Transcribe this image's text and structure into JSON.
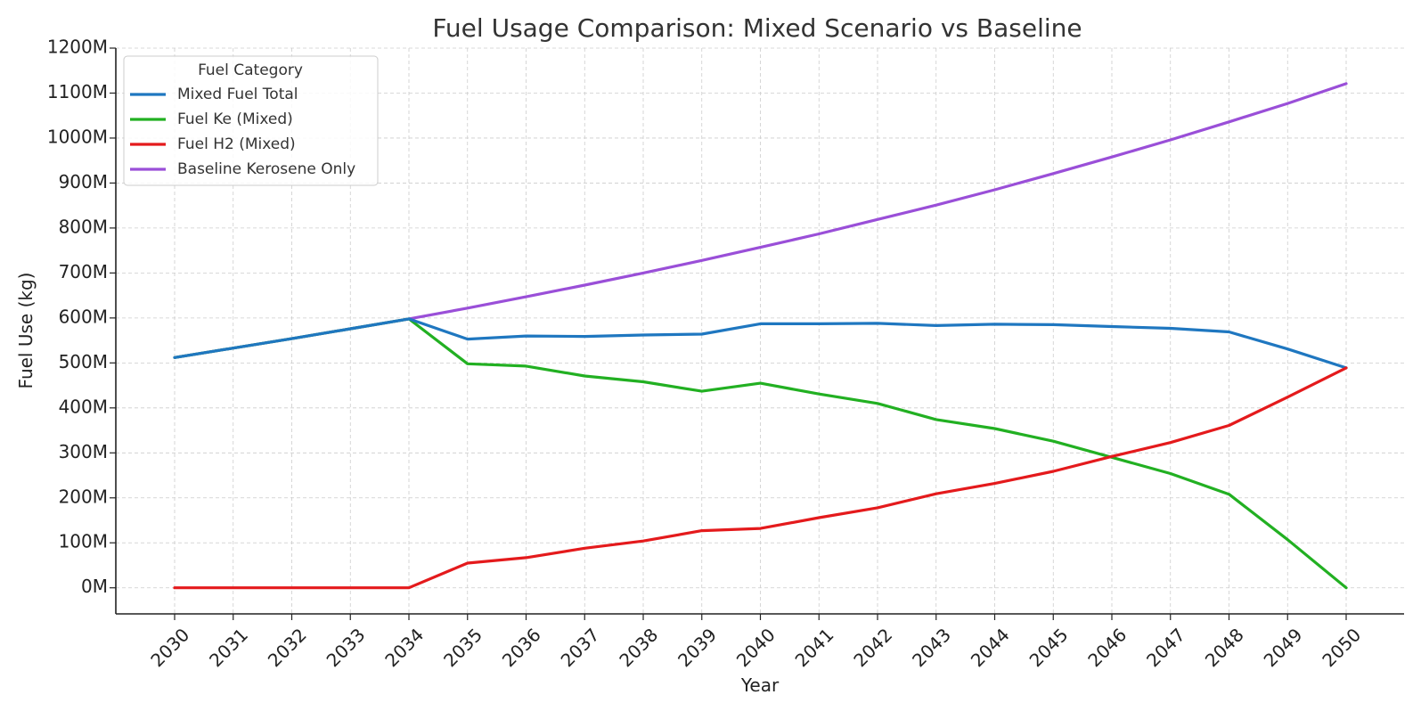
{
  "chart_data": {
    "type": "line",
    "title": "Fuel Usage Comparison: Mixed Scenario vs Baseline",
    "xlabel": "Year",
    "ylabel": "Fuel Use (kg)",
    "x": [
      2030,
      2031,
      2032,
      2033,
      2034,
      2035,
      2036,
      2037,
      2038,
      2039,
      2040,
      2041,
      2042,
      2043,
      2044,
      2045,
      2046,
      2047,
      2048,
      2049,
      2050
    ],
    "ylim": [
      -58,
      1200
    ],
    "yticks": [
      0,
      100,
      200,
      300,
      400,
      500,
      600,
      700,
      800,
      900,
      1000,
      1100,
      1200
    ],
    "ytick_labels": [
      "0M",
      "100M",
      "200M",
      "300M",
      "400M",
      "500M",
      "600M",
      "700M",
      "800M",
      "900M",
      "1000M",
      "1100M",
      "1200M"
    ],
    "y_unit": "M",
    "grid": true,
    "legend": {
      "title": "Fuel Category",
      "placement": "top-left"
    },
    "series": [
      {
        "name": "Mixed Fuel Total",
        "color": "#1f77c0",
        "values": [
          512,
          533,
          554,
          576,
          598,
          553,
          560,
          559,
          562,
          564,
          587,
          587,
          588,
          583,
          586,
          585,
          581,
          577,
          569,
          531,
          489
        ]
      },
      {
        "name": "Fuel Ke (Mixed)",
        "color": "#22b022",
        "values": [
          512,
          533,
          554,
          576,
          598,
          498,
          493,
          471,
          458,
          437,
          455,
          431,
          410,
          374,
          354,
          326,
          290,
          254,
          208,
          107,
          0
        ]
      },
      {
        "name": "Fuel H2 (Mixed)",
        "color": "#e41a1c",
        "values": [
          0,
          0,
          0,
          0,
          0,
          55,
          67,
          88,
          104,
          127,
          132,
          156,
          178,
          209,
          232,
          259,
          292,
          323,
          361,
          424,
          489
        ]
      },
      {
        "name": "Baseline Kerosene Only",
        "color": "#9a4fd8",
        "values": [
          512,
          533,
          554,
          576,
          598,
          622,
          647,
          673,
          700,
          728,
          757,
          787,
          819,
          851,
          885,
          921,
          958,
          996,
          1036,
          1077,
          1121
        ]
      }
    ]
  }
}
